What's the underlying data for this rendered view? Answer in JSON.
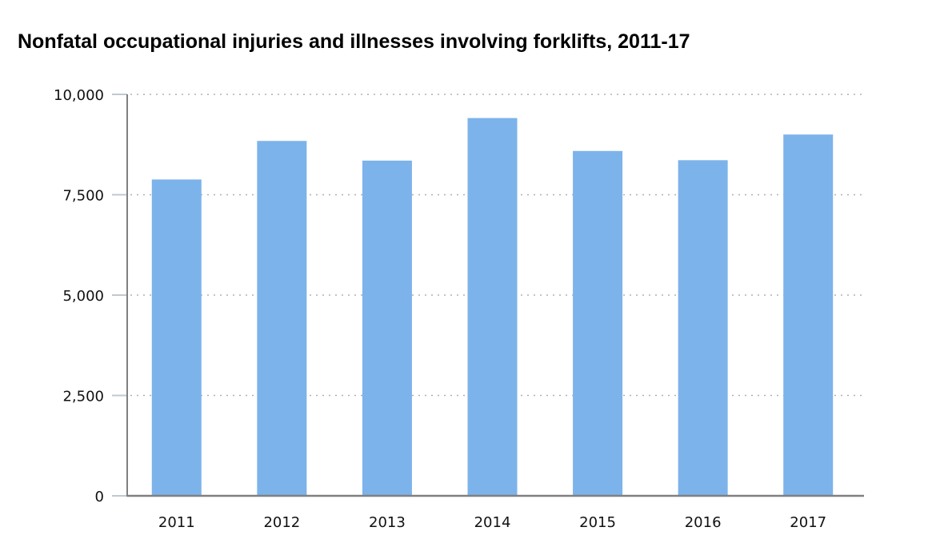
{
  "title": "Nonfatal occupational injuries and illnesses involving forklifts, 2011-17",
  "colors": {
    "bar": "#7cb3ea",
    "axis": "#808080",
    "grid": "#b0b0b0",
    "tick": "#c0c8d0"
  },
  "chart_data": {
    "type": "bar",
    "title": "Nonfatal occupational injuries and illnesses involving forklifts, 2011-17",
    "xlabel": "",
    "ylabel": "",
    "categories": [
      "2011",
      "2012",
      "2013",
      "2014",
      "2015",
      "2016",
      "2017"
    ],
    "values": [
      7880,
      8840,
      8350,
      9410,
      8590,
      8360,
      9000
    ],
    "ylim": [
      0,
      10000
    ],
    "yticks": [
      0,
      2500,
      5000,
      7500,
      10000
    ],
    "ytick_labels": [
      "0",
      "2,500",
      "5,000",
      "7,500",
      "10,000"
    ],
    "grid": "horizontal dotted",
    "legend": "none"
  }
}
